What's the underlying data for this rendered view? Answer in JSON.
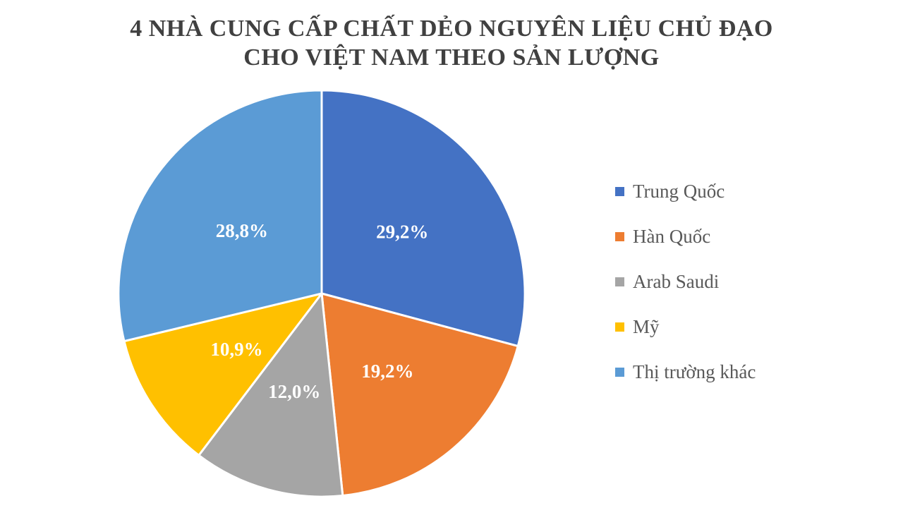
{
  "page": {
    "title_line1": "4 NHÀ CUNG CẤP CHẤT DẺO NGUYÊN LIỆU CHỦ ĐẠO",
    "title_line2": "CHO VIỆT NAM THEO SẢN LƯỢNG"
  },
  "chart_data": {
    "type": "pie",
    "title": "4 NHÀ CUNG CẤP CHẤT DẺO NGUYÊN LIỆU CHỦ ĐẠO CHO VIỆT NAM THEO SẢN LƯỢNG",
    "unit": "%",
    "decimal_separator": ",",
    "legend_position": "right",
    "start_angle_deg": 0,
    "direction": "clockwise",
    "slice_border_color": "#ffffff",
    "data_label_color": "#ffffff",
    "title_color": "#404040",
    "legend_text_color": "#595959",
    "slices": [
      {
        "id": "trung-quoc",
        "name": "Trung Quốc",
        "value": 29.2,
        "label": "29,2%",
        "color": "#4472C4"
      },
      {
        "id": "han-quoc",
        "name": "Hàn Quốc",
        "value": 19.2,
        "label": "19,2%",
        "color": "#ED7D31"
      },
      {
        "id": "arab-saudi",
        "name": "Arab Saudi",
        "value": 12.0,
        "label": "12,0%",
        "color": "#A5A5A5"
      },
      {
        "id": "my",
        "name": "Mỹ",
        "value": 10.9,
        "label": "10,9%",
        "color": "#FFC000"
      },
      {
        "id": "thi-truong-khac",
        "name": "Thị trường khác",
        "value": 28.8,
        "label": "28,8%",
        "color": "#5B9BD5"
      }
    ]
  }
}
